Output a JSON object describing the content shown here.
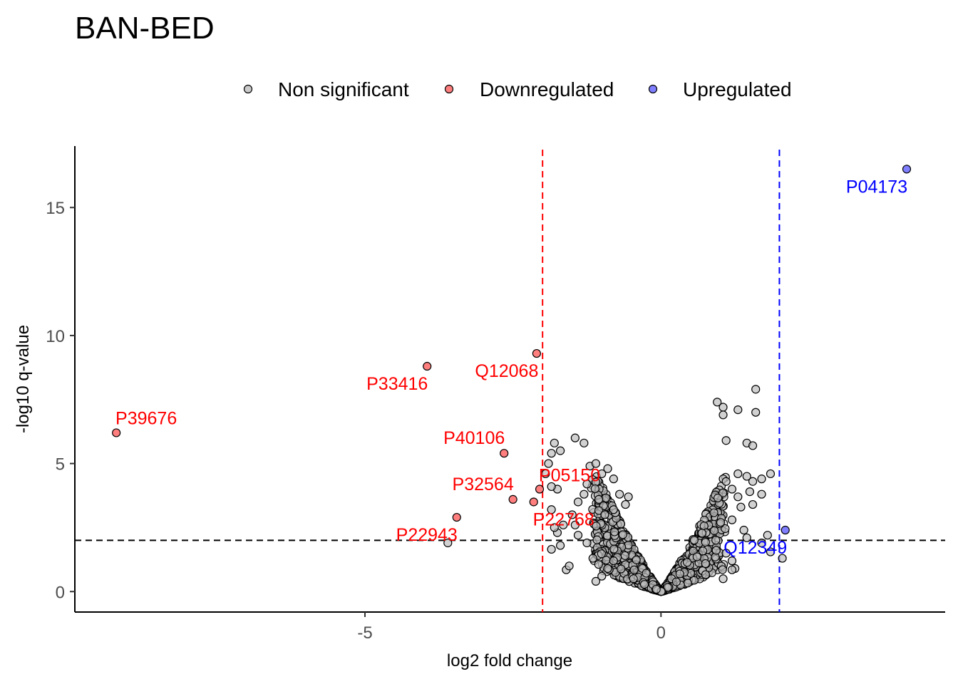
{
  "chart_data": {
    "type": "scatter",
    "title": "BAN-BED",
    "xlabel": "log2 fold change",
    "ylabel": "-log10 q-value",
    "xlim": [
      -9.9,
      4.8
    ],
    "ylim": [
      -0.8,
      17.4
    ],
    "x_ticks": [
      -5,
      0
    ],
    "y_ticks": [
      0,
      5,
      10,
      15
    ],
    "grid": false,
    "legend_position": "top",
    "thresholds": {
      "fc_low": -2.0,
      "fc_high": 2.0,
      "q": 2.0,
      "colors": {
        "fc_low": "#ff0000",
        "fc_high": "#0000ff",
        "q": "#000000"
      }
    },
    "series": [
      {
        "name": "Non significant",
        "color": "#bebebe",
        "points": [
          [
            -3.6,
            1.9
          ],
          [
            -1.85,
            1.65
          ],
          [
            -1.6,
            0.85
          ],
          [
            -1.55,
            1.0
          ],
          [
            -1.7,
            1.8
          ],
          [
            -1.75,
            2.3
          ],
          [
            -1.8,
            2.5
          ],
          [
            -1.85,
            3.2
          ],
          [
            -1.65,
            2.6
          ],
          [
            -1.75,
            4.0
          ],
          [
            -1.85,
            4.1
          ],
          [
            -1.95,
            4.6
          ],
          [
            -1.9,
            5.0
          ],
          [
            -1.85,
            5.4
          ],
          [
            -1.8,
            5.8
          ],
          [
            -1.7,
            5.5
          ],
          [
            -1.45,
            6.0
          ],
          [
            -1.3,
            5.8
          ],
          [
            -1.2,
            4.9
          ],
          [
            -1.25,
            4.2
          ],
          [
            -1.3,
            3.8
          ],
          [
            -1.4,
            3.5
          ],
          [
            -1.5,
            3.0
          ],
          [
            -1.45,
            2.6
          ],
          [
            -1.4,
            2.2
          ],
          [
            -1.25,
            1.9
          ],
          [
            -1.1,
            5.0
          ],
          [
            -1.0,
            4.6
          ],
          [
            -0.9,
            4.8
          ],
          [
            -0.8,
            4.4
          ],
          [
            -0.7,
            3.8
          ],
          [
            -0.6,
            3.4
          ],
          [
            -0.55,
            3.7
          ],
          [
            -0.8,
            3.2
          ],
          [
            -0.95,
            3.0
          ],
          [
            -1.05,
            3.6
          ],
          [
            -1.1,
            0.4
          ],
          [
            -1.0,
            0.6
          ],
          [
            -0.9,
            0.9
          ],
          [
            -0.8,
            1.2
          ],
          [
            -1.15,
            1.3
          ],
          [
            0.95,
            7.4
          ],
          [
            1.05,
            6.9
          ],
          [
            1.05,
            7.2
          ],
          [
            1.3,
            7.1
          ],
          [
            1.6,
            7.0
          ],
          [
            1.6,
            7.9
          ],
          [
            1.45,
            5.8
          ],
          [
            1.55,
            5.7
          ],
          [
            1.1,
            5.9
          ],
          [
            1.05,
            4.4
          ],
          [
            1.1,
            4.3
          ],
          [
            1.3,
            4.6
          ],
          [
            1.45,
            4.5
          ],
          [
            1.7,
            4.4
          ],
          [
            1.85,
            4.6
          ],
          [
            1.55,
            4.3
          ],
          [
            1.2,
            4.0
          ],
          [
            1.3,
            3.7
          ],
          [
            1.5,
            3.9
          ],
          [
            1.7,
            3.8
          ],
          [
            1.35,
            3.3
          ],
          [
            1.55,
            3.4
          ],
          [
            1.2,
            2.8
          ],
          [
            1.4,
            2.4
          ],
          [
            1.45,
            2.1
          ],
          [
            1.7,
            1.9
          ],
          [
            1.8,
            2.2
          ],
          [
            1.1,
            1.5
          ],
          [
            1.2,
            1.2
          ],
          [
            1.25,
            0.9
          ],
          [
            1.2,
            0.85
          ],
          [
            1.05,
            0.5
          ],
          [
            1.85,
            1.55
          ],
          [
            2.05,
            1.3
          ]
        ]
      },
      {
        "name": "Downregulated",
        "color": "#ff0000",
        "points": [
          {
            "x": -9.2,
            "y": 6.2,
            "label": "P39676"
          },
          {
            "x": -3.95,
            "y": 8.8,
            "label": "P33416"
          },
          {
            "x": -2.1,
            "y": 9.3,
            "label": "Q12068"
          },
          {
            "x": -2.65,
            "y": 5.4,
            "label": "P40106"
          },
          {
            "x": -2.05,
            "y": 4.0,
            "label": "P05150"
          },
          {
            "x": -2.5,
            "y": 3.6,
            "label": "P32564"
          },
          {
            "x": -2.15,
            "y": 3.5,
            "label": "P22768"
          },
          {
            "x": -3.45,
            "y": 2.9,
            "label": "P22943"
          }
        ]
      },
      {
        "name": "Upregulated",
        "color": "#0000ff",
        "points": [
          {
            "x": 4.15,
            "y": 16.5,
            "label": "P04173"
          },
          {
            "x": 2.1,
            "y": 2.4,
            "label": "Q12349"
          }
        ]
      }
    ]
  }
}
